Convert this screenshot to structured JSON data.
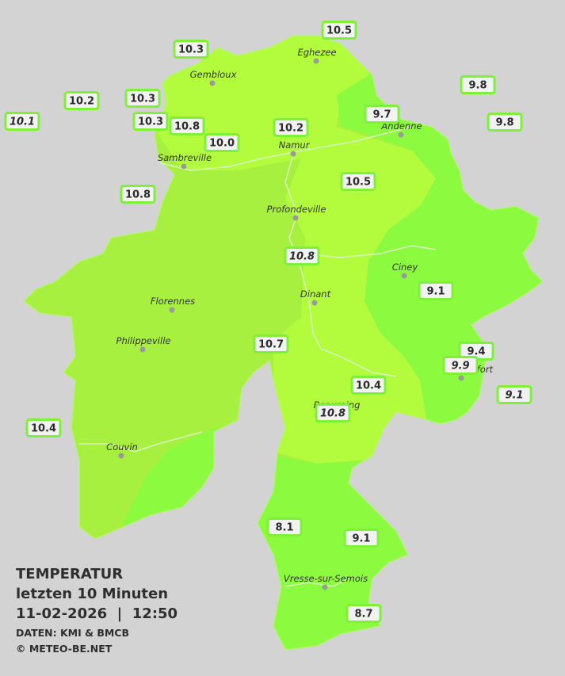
{
  "legend": {
    "title": "TEMPERATUR",
    "subtitle": "letzten 10 Minuten",
    "timestamp": "11-02-2026  |  12:50",
    "source": "DATEN: KMI & BMCB",
    "copyright": "© METEO-BE.NET"
  },
  "towns": [
    {
      "name": "Eghezee"
    },
    {
      "name": "Gembloux"
    },
    {
      "name": "Andenne"
    },
    {
      "name": "Namur"
    },
    {
      "name": "Sambreville"
    },
    {
      "name": "Profondeville"
    },
    {
      "name": "Ciney"
    },
    {
      "name": "Dinant"
    },
    {
      "name": "Florennes"
    },
    {
      "name": "Philippeville"
    },
    {
      "name": "Rochefort"
    },
    {
      "name": "Beauraing"
    },
    {
      "name": "Couvin"
    },
    {
      "name": "Vresse-sur-Semois"
    }
  ],
  "readings": [
    {
      "value": "10.5"
    },
    {
      "value": "10.3"
    },
    {
      "value": "9.8"
    },
    {
      "value": "10.2"
    },
    {
      "value": "10.3"
    },
    {
      "value": "10.1",
      "italic": true
    },
    {
      "value": "10.3"
    },
    {
      "value": "10.8"
    },
    {
      "value": "10.2"
    },
    {
      "value": "9.7"
    },
    {
      "value": "9.8"
    },
    {
      "value": "10.0"
    },
    {
      "value": "10.5"
    },
    {
      "value": "10.8"
    },
    {
      "value": "10.8",
      "italic": true
    },
    {
      "value": "9.1"
    },
    {
      "value": "10.7"
    },
    {
      "value": "9.4"
    },
    {
      "value": "9.9",
      "italic": true
    },
    {
      "value": "10.4"
    },
    {
      "value": "9.1",
      "italic": true
    },
    {
      "value": "10.8",
      "italic": true
    },
    {
      "value": "10.4"
    },
    {
      "value": "8.1"
    },
    {
      "value": "9.1"
    },
    {
      "value": "8.7"
    }
  ]
}
